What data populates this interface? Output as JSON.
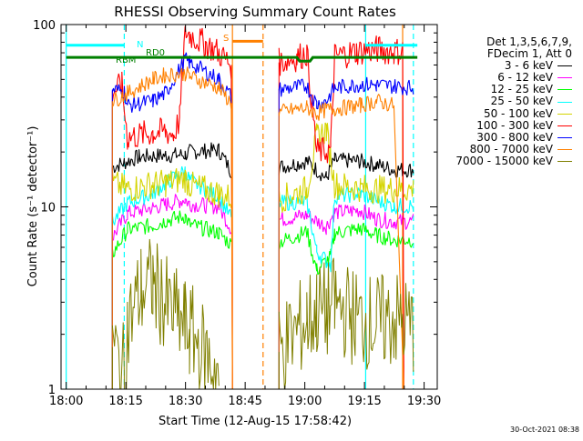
{
  "window": {
    "title": "RHESSI Observing Summary Count Rates"
  },
  "footer": {
    "timestamp": "30-Oct-2021 08:38"
  },
  "colors": {
    "3-6": "#000000",
    "6-12": "#ff00ff",
    "12-25": "#00ff00",
    "25-50": "#00ffff",
    "50-100": "#d4d400",
    "100-300": "#ff0000",
    "300-800": "#0000ff",
    "800-7000": "#ff8000",
    "7000-15000": "#808000",
    "rd0": "#008000",
    "night": "#00ffff",
    "saa": "#ff8000",
    "flag_cyan": "#00ffff"
  },
  "chart_data": {
    "type": "line",
    "title": "RHESSI Observing Summary Count Rates",
    "xlabel": "Start Time (12-Aug-15 17:58:42)",
    "ylabel": "Count Rate (s⁻¹ detector⁻¹)",
    "ylog": true,
    "ylim": [
      1,
      100
    ],
    "xlim_min": [
      -1.3,
      93.3
    ],
    "x_ticks": [
      0,
      15,
      30,
      45,
      60,
      75,
      90
    ],
    "x_tick_labels": [
      "18:00",
      "18:15",
      "18:30",
      "18:45",
      "19:00",
      "19:15",
      "19:30"
    ],
    "y_ticks": [
      1,
      10,
      100
    ],
    "y_tick_labels": [
      "1",
      "10",
      "100"
    ],
    "legend_header": [
      "Det 1,3,5,6,7,9,",
      "FDecim 1, Att 0"
    ],
    "legend_position": "right",
    "series": [
      {
        "name": "3 - 6 keV",
        "color_key": "3-6",
        "segments": [
          [
            [
              11.6,
              16.5
            ],
            [
              14.6,
              17.5
            ],
            [
              18.3,
              18.8
            ],
            [
              25,
              19.2
            ],
            [
              29.9,
              19.3
            ],
            [
              31,
              20
            ],
            [
              38.4,
              20.5
            ],
            [
              41.5,
              15.7
            ]
          ],
          [
            [
              53.5,
              16.5
            ],
            [
              60.5,
              17.8
            ],
            [
              65.4,
              14.4
            ],
            [
              67.5,
              18
            ],
            [
              74,
              17.8
            ],
            [
              78,
              17
            ],
            [
              82.4,
              16
            ],
            [
              87.3,
              16
            ]
          ]
        ]
      },
      {
        "name": "6 - 12 keV",
        "color_key": "6-12",
        "segments": [
          [
            [
              11.6,
              6.8
            ],
            [
              15.4,
              9.2
            ],
            [
              21.8,
              9.9
            ],
            [
              25,
              10.3
            ],
            [
              29.9,
              11
            ],
            [
              31,
              10.4
            ],
            [
              38.4,
              10
            ],
            [
              41.5,
              7.6
            ]
          ],
          [
            [
              53.5,
              8.5
            ],
            [
              60.5,
              9
            ],
            [
              65.4,
              7.8
            ],
            [
              67.5,
              9.3
            ],
            [
              74,
              9.6
            ],
            [
              78,
              8.6
            ],
            [
              82.4,
              8.3
            ],
            [
              87.3,
              8.3
            ]
          ]
        ]
      },
      {
        "name": "12 - 25 keV",
        "color_key": "12-25",
        "segments": [
          [
            [
              11.6,
              5.5
            ],
            [
              15.4,
              7.5
            ],
            [
              21.8,
              7.9
            ],
            [
              25,
              8.4
            ],
            [
              29.9,
              8.9
            ],
            [
              31,
              8
            ],
            [
              38.4,
              7.2
            ],
            [
              41.5,
              6.2
            ]
          ],
          [
            [
              53.5,
              6.4
            ],
            [
              60.5,
              7.3
            ],
            [
              63,
              4.5
            ],
            [
              66.5,
              5.3
            ],
            [
              67.5,
              7.2
            ],
            [
              74,
              7.6
            ],
            [
              78,
              7
            ],
            [
              82.4,
              6.6
            ],
            [
              87.3,
              6.6
            ]
          ]
        ]
      },
      {
        "name": "25 - 50 keV",
        "color_key": "25-50",
        "segments": [
          [
            [
              11.6,
              8.2
            ],
            [
              15.4,
              10.5
            ],
            [
              21.8,
              11.8
            ],
            [
              25,
              13.5
            ],
            [
              29.9,
              15.8
            ],
            [
              31,
              14
            ],
            [
              38.4,
              11.3
            ],
            [
              41.5,
              8.7
            ]
          ],
          [
            [
              53.5,
              10.5
            ],
            [
              60.5,
              10.7
            ],
            [
              63,
              5.7
            ],
            [
              66.5,
              4.8
            ],
            [
              67.5,
              11.4
            ],
            [
              74,
              11.8
            ],
            [
              78,
              10.8
            ],
            [
              82.4,
              10.1
            ],
            [
              87.3,
              10.1
            ]
          ]
        ]
      },
      {
        "name": "50 - 100 keV",
        "color_key": "50-100",
        "segments": [
          [
            [
              11.6,
              13.5
            ],
            [
              15.4,
              12.5
            ],
            [
              21.8,
              13.3
            ],
            [
              25,
              13.5
            ],
            [
              29.9,
              14.3
            ],
            [
              31,
              13.2
            ],
            [
              38.4,
              11.8
            ],
            [
              41.5,
              11.2
            ]
          ],
          [
            [
              53.5,
              11
            ],
            [
              60.5,
              12.5
            ],
            [
              63,
              24
            ],
            [
              65.4,
              26.5
            ],
            [
              67.5,
              13.2
            ],
            [
              74,
              12.7
            ],
            [
              78,
              12.5
            ],
            [
              82.4,
              12.5
            ],
            [
              87.3,
              12.5
            ]
          ]
        ]
      },
      {
        "name": "100 - 300 keV",
        "color_key": "100-300",
        "segments": [
          [
            [
              11.6,
              43
            ],
            [
              14,
              46
            ],
            [
              15.4,
              24
            ],
            [
              21.8,
              25.5
            ],
            [
              25,
              25.8
            ],
            [
              27,
              25
            ],
            [
              28.5,
              30
            ],
            [
              29.9,
              93
            ],
            [
              31,
              88
            ],
            [
              35,
              78
            ],
            [
              38.4,
              70
            ],
            [
              41.5,
              60
            ],
            [
              41.8,
              1
            ]
          ],
          [
            [
              53.5,
              62
            ],
            [
              58,
              66
            ],
            [
              60.5,
              70
            ],
            [
              63,
              20
            ],
            [
              66.5,
              20.5
            ],
            [
              67.5,
              67
            ],
            [
              73,
              71
            ],
            [
              78,
              73
            ],
            [
              82.4,
              71
            ],
            [
              84.6,
              72
            ],
            [
              84.9,
              1
            ]
          ]
        ]
      },
      {
        "name": "300 - 800 keV",
        "color_key": "300-800",
        "segments": [
          [
            [
              11.6,
              44
            ],
            [
              14.6,
              43
            ],
            [
              15.4,
              36
            ],
            [
              21.8,
              38
            ],
            [
              25,
              42
            ],
            [
              29.9,
              64
            ],
            [
              31,
              62
            ],
            [
              38.4,
              50
            ],
            [
              41.5,
              40
            ]
          ],
          [
            [
              53.5,
              44
            ],
            [
              60.5,
              46
            ],
            [
              63,
              36.5
            ],
            [
              65.4,
              38
            ],
            [
              67.5,
              45
            ],
            [
              74,
              47
            ],
            [
              78,
              46.5
            ],
            [
              82.4,
              46
            ],
            [
              87.3,
              45
            ]
          ]
        ]
      },
      {
        "name": "800 - 7000 keV",
        "color_key": "800-7000",
        "segments": [
          [
            [
              11.6,
              38
            ],
            [
              15.4,
              42
            ],
            [
              21.8,
              50
            ],
            [
              25,
              53
            ],
            [
              29.9,
              54
            ],
            [
              31,
              52
            ],
            [
              38.4,
              45
            ],
            [
              41.5,
              37
            ],
            [
              41.8,
              1
            ]
          ],
          [
            [
              53.5,
              33
            ],
            [
              60.5,
              35
            ],
            [
              63,
              32.5
            ],
            [
              65.4,
              34
            ],
            [
              67.5,
              34.5
            ],
            [
              74,
              36
            ],
            [
              78,
              38
            ],
            [
              82.4,
              36
            ],
            [
              84.9,
              1
            ]
          ]
        ]
      },
      {
        "name": "7000 - 15000 keV",
        "color_key": "7000-15000",
        "segments": [
          [
            [
              11.6,
              1.7
            ],
            [
              14.6,
              1.2
            ],
            [
              15.4,
              2.2
            ],
            [
              18.8,
              3.5
            ],
            [
              21.8,
              3.8
            ],
            [
              25,
              2.9
            ],
            [
              29.9,
              2.2
            ],
            [
              31,
              2.1
            ],
            [
              38.4,
              1.2
            ]
          ],
          [
            [
              53.5,
              1.6
            ],
            [
              60.5,
              2.4
            ],
            [
              63,
              2.7
            ],
            [
              65.4,
              2.7
            ],
            [
              67.5,
              2.9
            ],
            [
              74,
              2.4
            ],
            [
              78,
              2.3
            ],
            [
              82.4,
              2.4
            ],
            [
              87.3,
              2.2
            ]
          ]
        ]
      }
    ],
    "flags": [
      {
        "label": "RD0",
        "color_key": "rd0",
        "segments": [
          [
            0,
            66
          ],
          [
            58,
            66
          ],
          [
            58.7,
            63
          ],
          [
            61.3,
            63
          ],
          [
            62,
            66
          ],
          [
            88.3,
            66
          ]
        ]
      },
      {
        "label": "RBM",
        "color_key": "rd0"
      },
      {
        "label": "N",
        "color_key": "night",
        "segments": [
          [
            0,
            77
          ],
          [
            14.6,
            77
          ]
        ],
        "segments_2": [
          [
            75.3,
            77
          ],
          [
            88.3,
            77
          ]
        ]
      },
      {
        "label": "S",
        "color_key": "saa",
        "segments": [
          [
            41.8,
            81
          ],
          [
            49.5,
            81
          ]
        ]
      }
    ],
    "vertical_markers": [
      {
        "x": 0,
        "color_key": "night",
        "style": "solid"
      },
      {
        "x": 14.6,
        "color_key": "night",
        "style": "dashed"
      },
      {
        "x": 41.8,
        "color_key": "saa",
        "style": "solid"
      },
      {
        "x": 49.5,
        "color_key": "saa",
        "style": "dashed"
      },
      {
        "x": 75.3,
        "color_key": "night",
        "style": "solid"
      },
      {
        "x": 84.6,
        "color_key": "saa",
        "style": "solid"
      },
      {
        "x": 87.3,
        "color_key": "night",
        "style": "dashed"
      }
    ]
  }
}
